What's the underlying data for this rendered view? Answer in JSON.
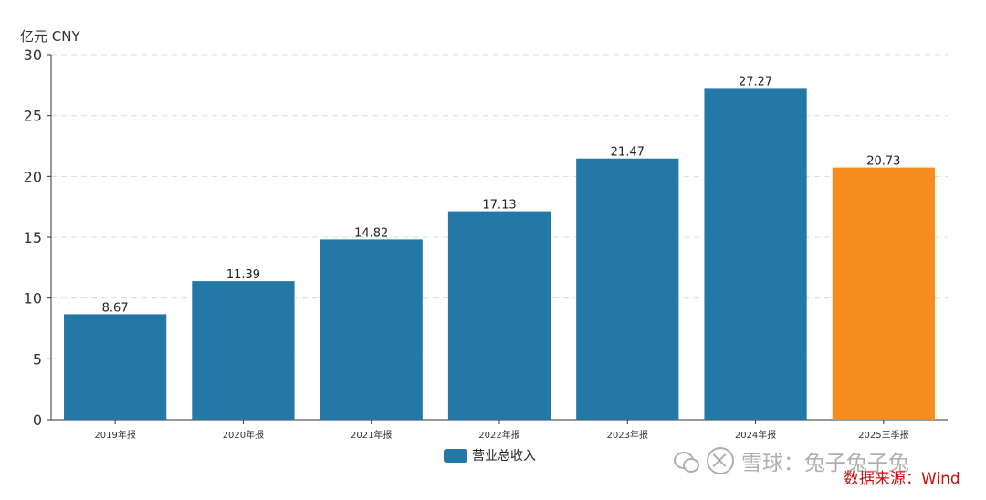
{
  "unit_label": "亿元  CNY",
  "legend": {
    "label": "营业总收入",
    "color": "#2378a6"
  },
  "watermark": {
    "text": "雪球：兔子兔子兔"
  },
  "source": "数据来源：Wind",
  "chart_data": {
    "type": "bar",
    "categories": [
      "2019年报",
      "2020年报",
      "2021年报",
      "2022年报",
      "2023年报",
      "2024年报",
      "2025三季报"
    ],
    "series": [
      {
        "name": "营业总收入",
        "values": [
          8.67,
          11.39,
          14.82,
          17.13,
          21.47,
          27.27,
          20.73
        ],
        "labels": [
          "8.67",
          "11.39",
          "14.82",
          "17.13",
          "21.47",
          "27.27",
          "20.73"
        ],
        "colors": [
          "#2378a6",
          "#2378a6",
          "#2378a6",
          "#2378a6",
          "#2378a6",
          "#2378a6",
          "#f68b1e"
        ]
      }
    ],
    "ylim": [
      0,
      30
    ],
    "yticks": [
      0,
      5,
      10,
      15,
      20,
      25,
      30
    ],
    "grid": true,
    "legend_position": "bottom-center"
  }
}
